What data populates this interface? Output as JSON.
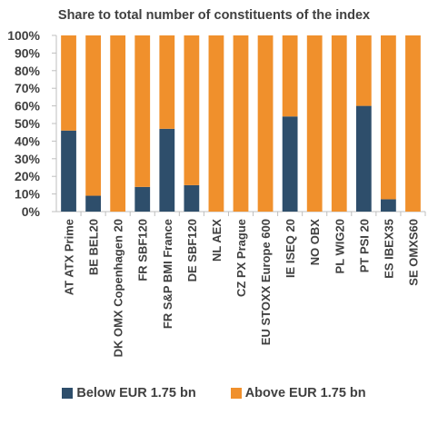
{
  "chart_data": {
    "type": "bar",
    "stacked": true,
    "title": "Share to total number of constituents of the index",
    "categories": [
      "AT ATX Prime",
      "BE BEL20",
      "DK OMX Copenhagen 20",
      "FR SBF120",
      "FR S&P BMI France",
      "DE SBF120",
      "NL AEX",
      "CZ PX Prague",
      "EU STOXX Europe 600",
      "IE ISEQ 20",
      "NO OBX",
      "PL WIG20",
      "PT PSI 20",
      "ES IBEX35",
      "SE OMXS60"
    ],
    "series": [
      {
        "name": "Below EUR 1.75 bn",
        "color": "#2E4E6B",
        "values": [
          46,
          9,
          0,
          14,
          47,
          15,
          0,
          0,
          0,
          54,
          0,
          0,
          60,
          7,
          0
        ]
      },
      {
        "name": "Above EUR 1.75 bn",
        "color": "#F0902C",
        "values": [
          54,
          91,
          100,
          86,
          53,
          85,
          100,
          100,
          100,
          46,
          100,
          100,
          40,
          93,
          100
        ]
      }
    ],
    "yticks": [
      "0%",
      "10%",
      "20%",
      "30%",
      "40%",
      "50%",
      "60%",
      "70%",
      "80%",
      "90%",
      "100%"
    ],
    "ylim": [
      0,
      100
    ],
    "grid": false,
    "legend_position": "bottom"
  }
}
